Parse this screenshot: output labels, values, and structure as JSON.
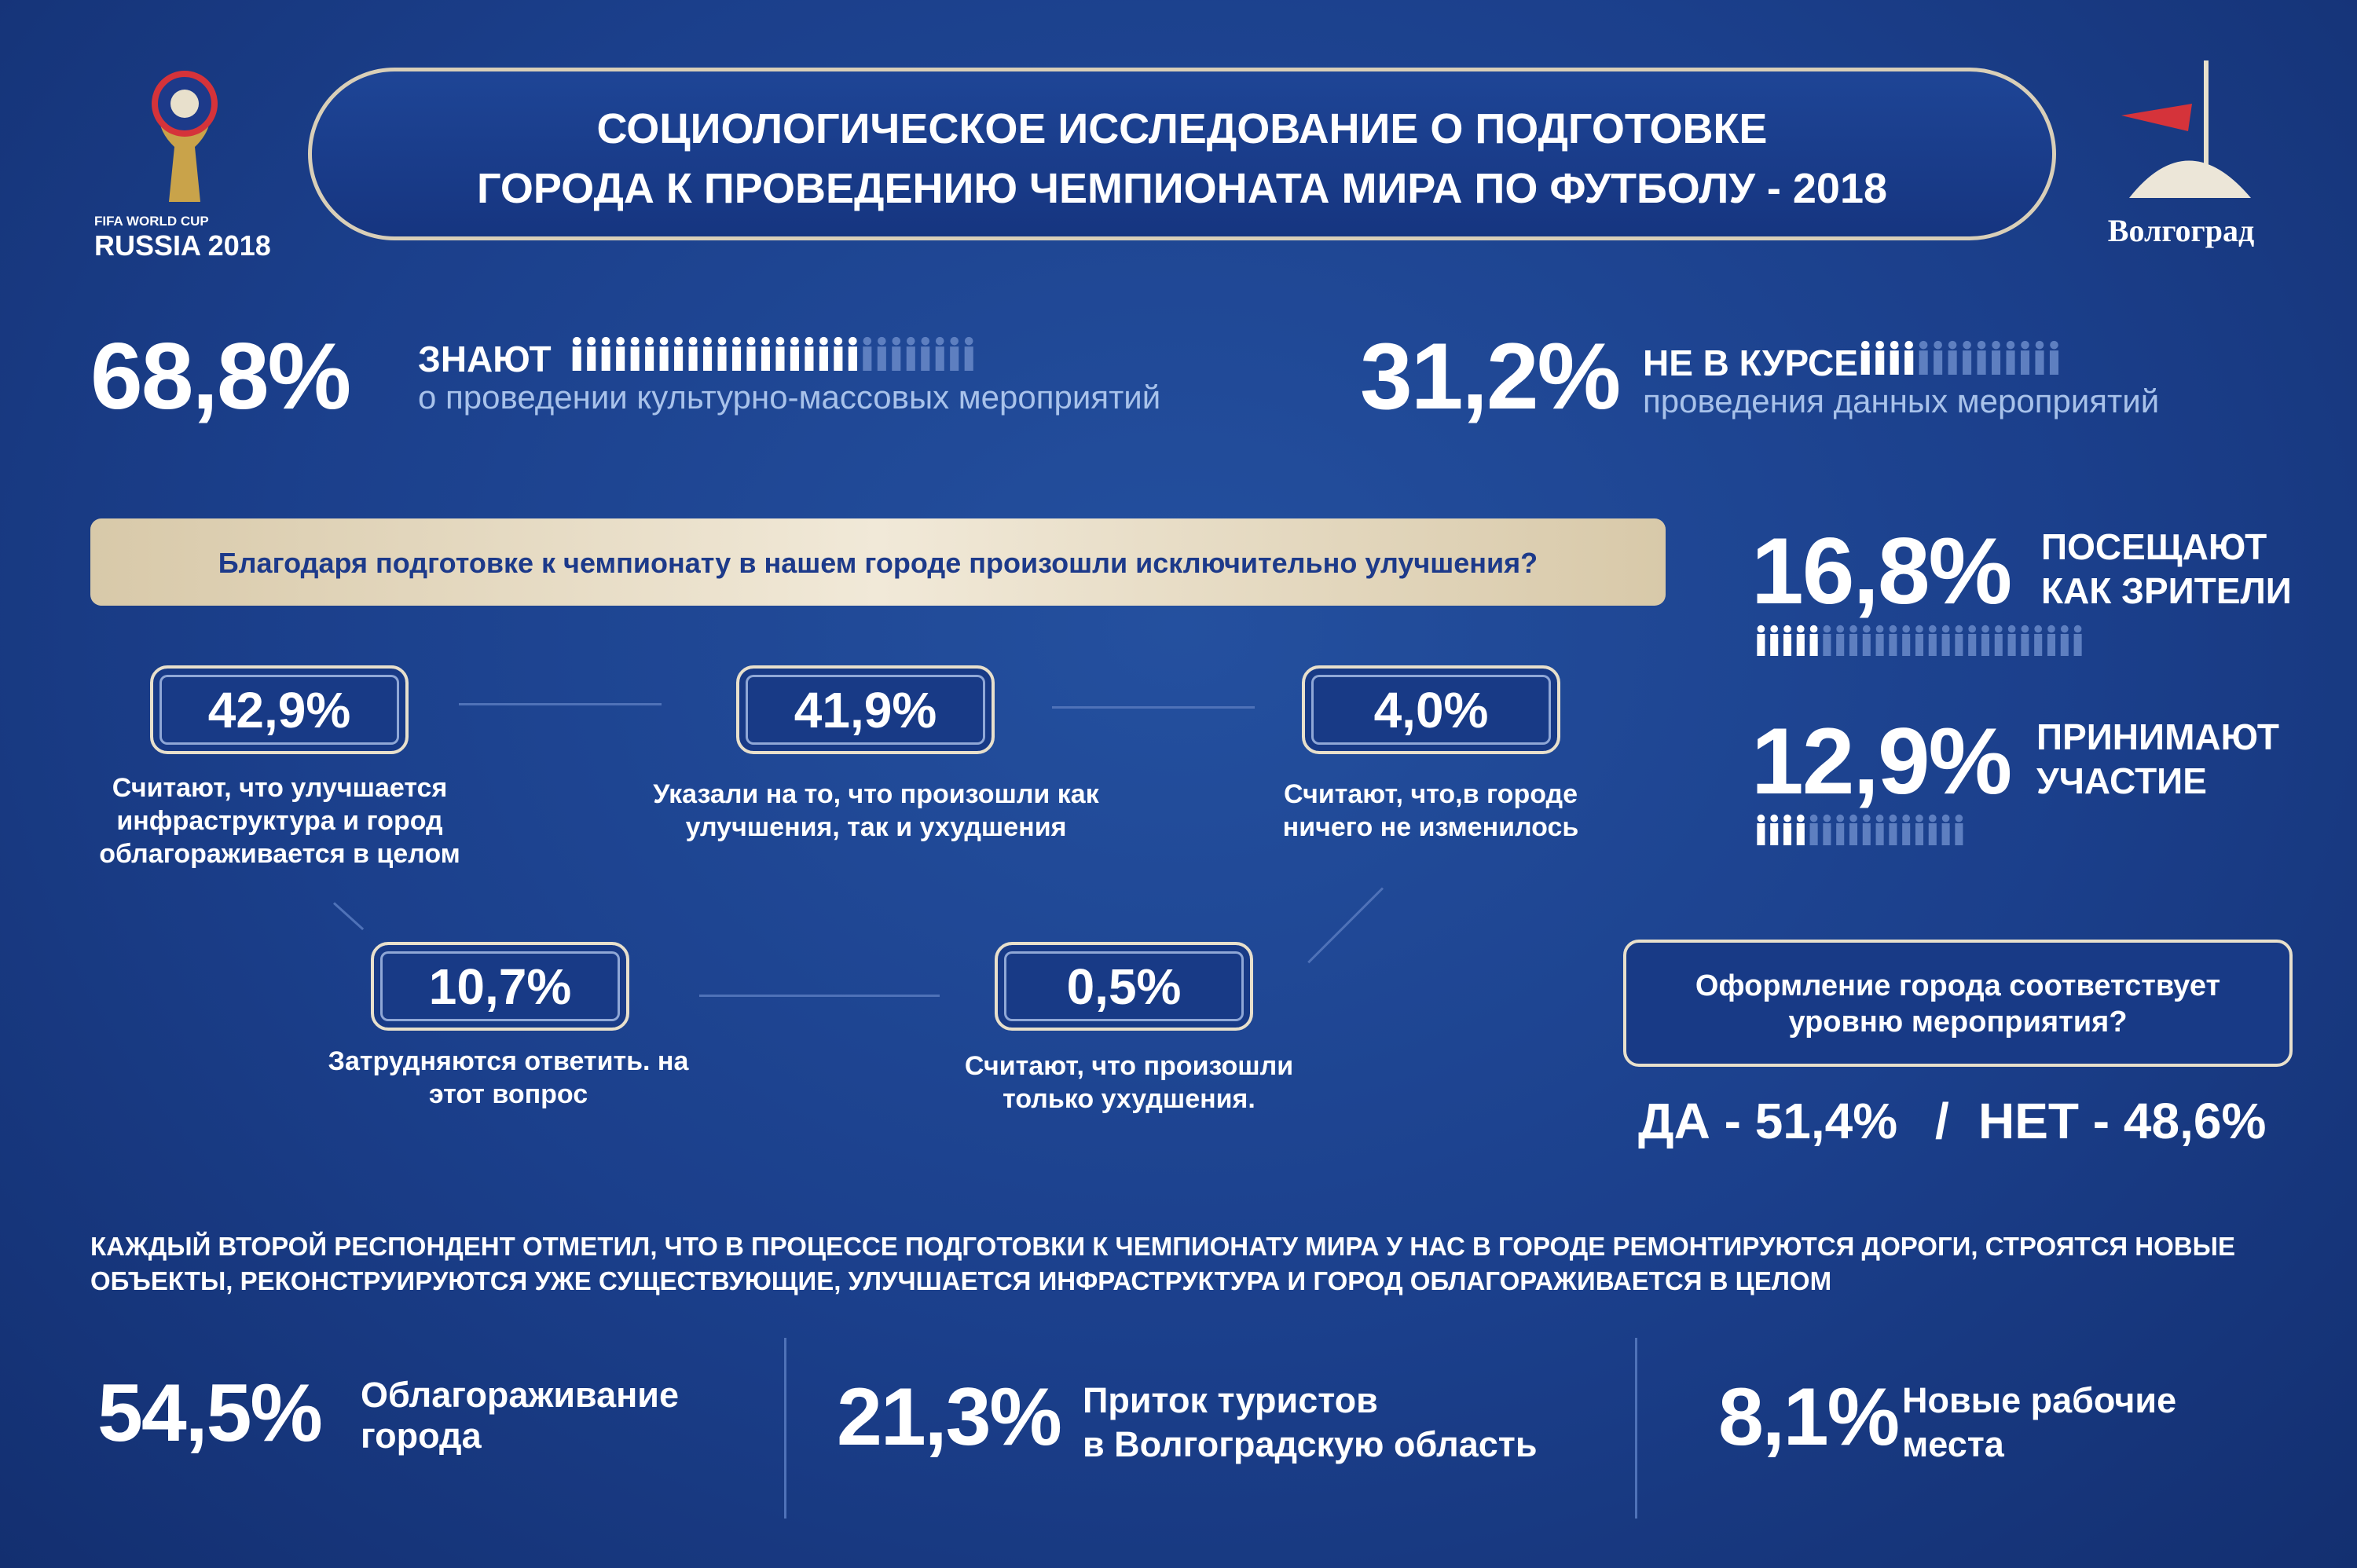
{
  "header": {
    "logo_left": {
      "line1": "FIFA WORLD CUP",
      "line2": "RUSSIA 2018"
    },
    "title": [
      "СОЦИОЛОГИЧЕСКОЕ ИССЛЕДОВАНИЕ О ПОДГОТОВКЕ",
      "ГОРОДА К ПРОВЕДЕНИЮ ЧЕМПИОНАТА МИРА ПО ФУТБОЛУ - 2018"
    ],
    "logo_right": "Волгоград"
  },
  "awareness": [
    {
      "value": "68,8%",
      "label": "ЗНАЮТ",
      "text": "о проведении культурно-массовых мероприятий"
    },
    {
      "value": "31,2%",
      "label": "НЕ В КУРСЕ",
      "text": "проведения данных мероприятий"
    }
  ],
  "question": {
    "text": "Благодаря подготовке к чемпионату в нашем городе произошли исключительно улучшения?",
    "answers": [
      {
        "value": "42,9%",
        "text": "Считают, что улучшается инфраструктура и город облагораживается в целом"
      },
      {
        "value": "41,9%",
        "text": "Указали на то, что произошли как улучшения, так и ухудшения"
      },
      {
        "value": "4,0%",
        "text": "Считают, что,в городе ничего не изменилось"
      },
      {
        "value": "10,7%",
        "text": "Затрудняются ответить. на этот вопрос"
      },
      {
        "value": "0,5%",
        "text": "Считают, что произошли только ухудшения."
      }
    ]
  },
  "participation": [
    {
      "value": "16,8%",
      "label": [
        "ПОСЕЩАЮТ",
        "КАК ЗРИТЕЛИ"
      ]
    },
    {
      "value": "12,9%",
      "label": [
        "ПРИНИМАЮТ",
        "УЧАСТИЕ"
      ]
    }
  ],
  "decoration": {
    "question": "Оформление города соответствует уровню мероприятия?",
    "yes": "ДА - 51,4%",
    "separator": "/",
    "no": "НЕТ - 48,6%"
  },
  "note": "КАЖДЫЙ ВТОРОЙ РЕСПОНДЕНТ ОТМЕТИЛ, ЧТО В ПРОЦЕССЕ ПОДГОТОВКИ К ЧЕМПИОНАТУ МИРА У НАС В ГОРОДЕ РЕМОНТИРУЮТСЯ ДОРОГИ, СТРОЯТСЯ НОВЫЕ ОБЪЕКТЫ, РЕКОНСТРУИРУЮТСЯ УЖЕ СУЩЕСТВУЮЩИЕ, УЛУЧШАЕТСЯ ИНФРАСТРУКТУРА И ГОРОД ОБЛАГОРАЖИВАЕТСЯ В ЦЕЛОМ",
  "changes": [
    {
      "value": "54,5%",
      "label": [
        "Облагораживание",
        "города"
      ]
    },
    {
      "value": "21,3%",
      "label": [
        "Приток туристов",
        "в Волгоградскую область"
      ]
    },
    {
      "value": "8,1%",
      "label": [
        "Новые рабочие",
        "места"
      ]
    }
  ]
}
